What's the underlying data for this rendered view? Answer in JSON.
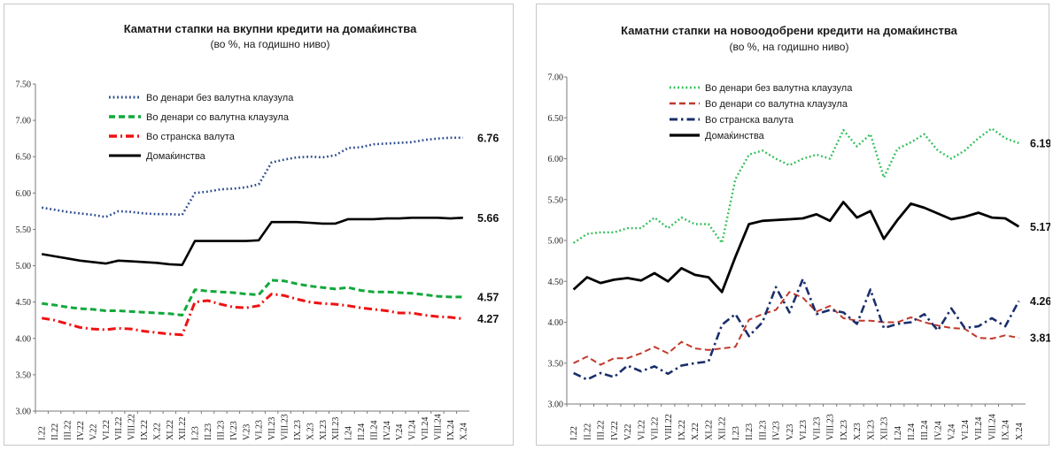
{
  "chart_data": [
    {
      "type": "line",
      "title": "Каматни стапки на вкупни кредити на домаќинства",
      "subtitle": "(во %, на годишно ниво)",
      "ylim": [
        3.0,
        7.5
      ],
      "yticks": [
        "3.00",
        "3.50",
        "4.00",
        "4.50",
        "5.00",
        "5.50",
        "6.00",
        "6.50",
        "7.00",
        "7.50"
      ],
      "categories": [
        "I.22",
        "II.22",
        "III.22",
        "IV.22",
        "V.22",
        "VI.22",
        "VII.22",
        "VIII.22",
        "IX.22",
        "X.22",
        "XI.22",
        "XII.22",
        "I.23",
        "II.23",
        "III.23",
        "IV.23",
        "V.23",
        "VI.23",
        "VII.23",
        "VIII.23",
        "IX.23",
        "X.23",
        "XI.23",
        "XII.23",
        "I.24",
        "II.24",
        "III.24",
        "IV.24",
        "V.24",
        "VI.24",
        "VII.24",
        "VIII.24",
        "IX.24",
        "X.24"
      ],
      "legend_position": "top-left",
      "series": [
        {
          "name": "Во денари без валутна клаузула",
          "color": "#2e4d8f",
          "style": "dotted",
          "end_label": "6.76",
          "values": [
            5.8,
            5.77,
            5.74,
            5.72,
            5.7,
            5.67,
            5.75,
            5.74,
            5.72,
            5.71,
            5.71,
            5.7,
            6.0,
            6.02,
            6.05,
            6.06,
            6.08,
            6.12,
            6.42,
            6.46,
            6.49,
            6.5,
            6.49,
            6.52,
            6.62,
            6.63,
            6.67,
            6.68,
            6.69,
            6.7,
            6.73,
            6.75,
            6.76,
            6.76
          ]
        },
        {
          "name": "Во денари со валутна клаузула",
          "color": "#11a83b",
          "style": "dashed",
          "end_label": "4.57",
          "values": [
            4.48,
            4.46,
            4.43,
            4.41,
            4.4,
            4.38,
            4.38,
            4.37,
            4.36,
            4.35,
            4.34,
            4.32,
            4.67,
            4.65,
            4.64,
            4.63,
            4.61,
            4.6,
            4.8,
            4.79,
            4.75,
            4.72,
            4.7,
            4.68,
            4.7,
            4.66,
            4.64,
            4.64,
            4.63,
            4.62,
            4.6,
            4.58,
            4.57,
            4.57
          ]
        },
        {
          "name": "Во странска валута",
          "color": "#ee1111",
          "style": "dashdot",
          "end_label": "4.27",
          "values": [
            4.28,
            4.25,
            4.2,
            4.15,
            4.13,
            4.12,
            4.14,
            4.13,
            4.1,
            4.08,
            4.06,
            4.05,
            4.5,
            4.52,
            4.47,
            4.43,
            4.42,
            4.45,
            4.61,
            4.59,
            4.54,
            4.5,
            4.48,
            4.47,
            4.45,
            4.42,
            4.4,
            4.38,
            4.35,
            4.35,
            4.32,
            4.3,
            4.29,
            4.27
          ]
        },
        {
          "name": "Домаќинства",
          "color": "#000000",
          "style": "solid",
          "end_label": "5.66",
          "values": [
            5.16,
            5.13,
            5.1,
            5.07,
            5.05,
            5.03,
            5.07,
            5.06,
            5.05,
            5.04,
            5.02,
            5.01,
            5.34,
            5.34,
            5.34,
            5.34,
            5.34,
            5.35,
            5.6,
            5.6,
            5.6,
            5.59,
            5.58,
            5.58,
            5.64,
            5.64,
            5.64,
            5.65,
            5.65,
            5.66,
            5.66,
            5.66,
            5.65,
            5.66
          ]
        }
      ]
    },
    {
      "type": "line",
      "title": "Каматни стапки на новоодобрени кредити на домаќинства",
      "subtitle": "(во %, на годишно ниво)",
      "ylim": [
        3.0,
        7.0
      ],
      "yticks": [
        "3.00",
        "3.50",
        "4.00",
        "4.50",
        "5.00",
        "5.50",
        "6.00",
        "6.50",
        "7.00"
      ],
      "categories": [
        "I.22",
        "II.22",
        "III.22",
        "IV.22",
        "V.22",
        "VI.22",
        "VII.22",
        "VIII.22",
        "IX.22",
        "X.22",
        "XI.22",
        "XII.22",
        "I.23",
        "II.23",
        "III.23",
        "IV.23",
        "V.23",
        "VI.23",
        "VII.23",
        "VIII.23",
        "IX.23",
        "X.23",
        "XI.23",
        "XII.23",
        "I.24",
        "II.24",
        "III.24",
        "IV.24",
        "V.24",
        "VI.24",
        "VII.24",
        "VIII.24",
        "IX.24",
        "X.24"
      ],
      "legend_position": "top-left",
      "series": [
        {
          "name": "Во денари без валутна клаузула",
          "color": "#2ebd55",
          "style": "dotted",
          "end_label": "6.19",
          "values": [
            4.97,
            5.08,
            5.1,
            5.1,
            5.15,
            5.15,
            5.28,
            5.15,
            5.28,
            5.2,
            5.2,
            4.97,
            5.75,
            6.05,
            6.1,
            6.0,
            5.92,
            6.0,
            6.05,
            6.0,
            6.35,
            6.15,
            6.3,
            5.77,
            6.12,
            6.2,
            6.3,
            6.1,
            6.0,
            6.1,
            6.25,
            6.37,
            6.25,
            6.19
          ]
        },
        {
          "name": "Во денари со валутна клаузула",
          "color": "#c0392b",
          "style": "dashed",
          "end_label": "3.81",
          "values": [
            3.5,
            3.58,
            3.48,
            3.56,
            3.56,
            3.62,
            3.7,
            3.62,
            3.76,
            3.68,
            3.66,
            3.68,
            3.7,
            4.03,
            4.1,
            4.15,
            4.37,
            4.3,
            4.13,
            4.2,
            4.05,
            4.02,
            4.02,
            4.0,
            4.0,
            4.06,
            4.0,
            3.96,
            3.93,
            3.92,
            3.81,
            3.8,
            3.84,
            3.81
          ]
        },
        {
          "name": "Во странска валута",
          "color": "#1a2f6b",
          "style": "longdash",
          "end_label": "4.26",
          "values": [
            3.38,
            3.3,
            3.38,
            3.33,
            3.47,
            3.4,
            3.46,
            3.37,
            3.47,
            3.5,
            3.52,
            3.97,
            4.1,
            3.83,
            4.0,
            4.43,
            4.12,
            4.53,
            4.1,
            4.15,
            4.12,
            3.98,
            4.4,
            3.93,
            3.98,
            4.0,
            4.1,
            3.9,
            4.17,
            3.93,
            3.95,
            4.05,
            3.95,
            4.26
          ]
        },
        {
          "name": "Домаќинства",
          "color": "#000000",
          "style": "solid",
          "end_label": "5.17",
          "values": [
            4.4,
            4.55,
            4.48,
            4.52,
            4.54,
            4.51,
            4.6,
            4.5,
            4.66,
            4.58,
            4.55,
            4.37,
            4.8,
            5.2,
            5.24,
            5.25,
            5.26,
            5.27,
            5.32,
            5.24,
            5.47,
            5.28,
            5.36,
            5.02,
            5.25,
            5.45,
            5.4,
            5.33,
            5.26,
            5.29,
            5.34,
            5.28,
            5.27,
            5.17
          ]
        }
      ]
    }
  ]
}
